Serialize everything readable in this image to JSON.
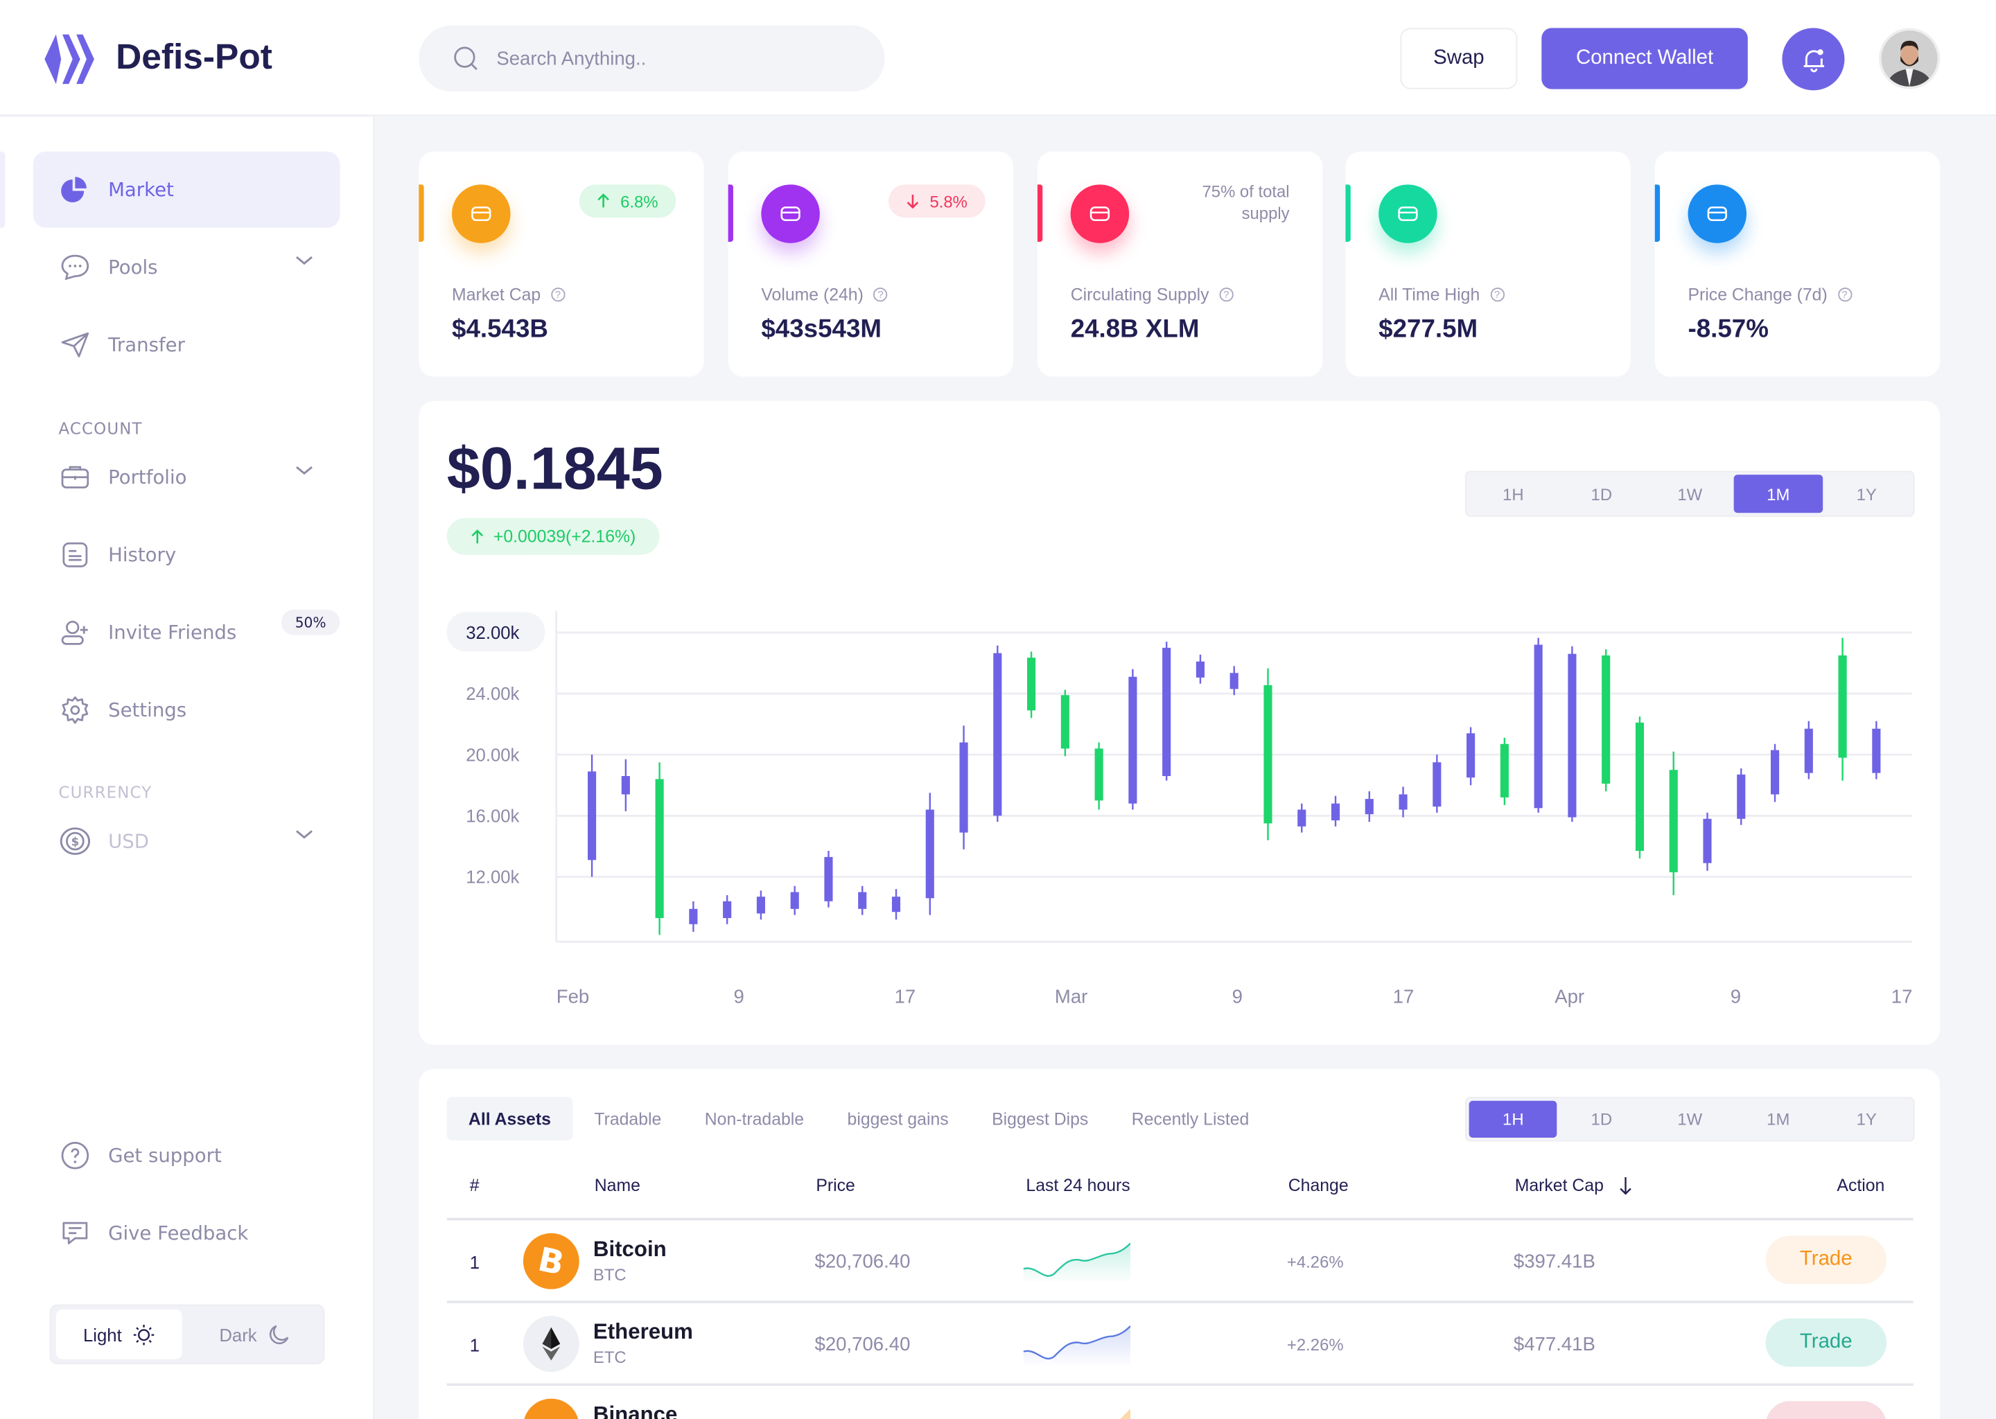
{
  "app": {
    "name": "Defis-Pot",
    "accent": "#6F63E5"
  },
  "header": {
    "search_placeholder": "Search Anything..",
    "swap_label": "Swap",
    "connect_label": "Connect Wallet",
    "bell_icon": "bell-icon",
    "avatar": "user-avatar"
  },
  "sidebar": {
    "items": [
      {
        "label": "Market",
        "icon": "pie-chart-icon",
        "active": true
      },
      {
        "label": "Pools",
        "icon": "chat-bubble-icon",
        "expandable": true
      },
      {
        "label": "Transfer",
        "icon": "send-icon"
      }
    ],
    "account_heading": "ACCOUNT",
    "account_items": [
      {
        "label": "Portfolio",
        "icon": "briefcase-icon",
        "expandable": true
      },
      {
        "label": "History",
        "icon": "document-icon"
      },
      {
        "label": "Invite Friends",
        "icon": "user-plus-icon",
        "badge": "50%"
      },
      {
        "label": "Settings",
        "icon": "gear-icon"
      }
    ],
    "currency_heading": "CURRENCY",
    "currency": {
      "label": "USD",
      "icon": "dollar-coin-icon"
    },
    "bottom_items": [
      {
        "label": "Get support",
        "icon": "help-circle-icon"
      },
      {
        "label": "Give Feedback",
        "icon": "message-icon"
      }
    ],
    "theme": {
      "light": "Light",
      "dark": "Dark",
      "selected": "Light"
    }
  },
  "stats": [
    {
      "label": "Market Cap",
      "value": "$4.543B",
      "change": "6.8%",
      "direction": "up",
      "color": "#F7A21B"
    },
    {
      "label": "Volume (24h)",
      "value": "$43s543M",
      "change": "5.8%",
      "direction": "down",
      "color": "#A033F0"
    },
    {
      "label": "Circulating Supply",
      "value": "24.8B XLM",
      "note": "75% of total supply",
      "color": "#FF2E5E"
    },
    {
      "label": "All Time High",
      "value": "$277.5M",
      "color": "#16D9A0"
    },
    {
      "label": "Price Change (7d)",
      "value": "-8.57%",
      "color": "#1A8CF0"
    }
  ],
  "price": {
    "value": "$0.1845",
    "change": "+0.00039(+2.16%)"
  },
  "timeframes": [
    "1H",
    "1D",
    "1W",
    "1M",
    "1Y"
  ],
  "chart_timeframe": "1M",
  "chart_data": {
    "type": "candlestick",
    "x_ticks": [
      "Feb",
      "9",
      "17",
      "Mar",
      "9",
      "17",
      "Apr",
      "9",
      "17"
    ],
    "y_ticks": [
      12,
      16,
      20,
      24,
      32
    ],
    "y_tick_labels": [
      "12.00k",
      "16.00k",
      "20.00k",
      "24.00k",
      "32.00k"
    ],
    "y_highlight": "32.00k",
    "unit": "k",
    "grid": true,
    "colors": {
      "up": "#1ED56B",
      "down": "#6F63E5"
    },
    "candles": [
      {
        "o": 18.9,
        "h": 20.0,
        "l": 12.0,
        "c": 13.1
      },
      {
        "o": 18.6,
        "h": 19.7,
        "l": 16.3,
        "c": 17.4
      },
      {
        "o": 9.3,
        "h": 19.5,
        "l": 8.2,
        "c": 18.4
      },
      {
        "o": 9.9,
        "h": 10.4,
        "l": 8.4,
        "c": 8.9
      },
      {
        "o": 10.4,
        "h": 10.8,
        "l": 8.9,
        "c": 9.3
      },
      {
        "o": 10.7,
        "h": 11.1,
        "l": 9.2,
        "c": 9.6
      },
      {
        "o": 11.0,
        "h": 11.4,
        "l": 9.5,
        "c": 9.9
      },
      {
        "o": 13.3,
        "h": 13.7,
        "l": 10.0,
        "c": 10.4
      },
      {
        "o": 11.0,
        "h": 11.4,
        "l": 9.5,
        "c": 9.9
      },
      {
        "o": 10.7,
        "h": 11.2,
        "l": 9.2,
        "c": 9.7
      },
      {
        "o": 16.4,
        "h": 17.5,
        "l": 9.5,
        "c": 10.6
      },
      {
        "o": 20.8,
        "h": 21.9,
        "l": 13.8,
        "c": 14.9
      },
      {
        "o": 29.3,
        "h": 30.3,
        "l": 15.6,
        "c": 16.0
      },
      {
        "o": 22.9,
        "h": 29.5,
        "l": 22.4,
        "c": 28.7
      },
      {
        "o": 20.4,
        "h": 24.5,
        "l": 19.9,
        "c": 23.9
      },
      {
        "o": 17.0,
        "h": 20.8,
        "l": 16.4,
        "c": 20.4
      },
      {
        "o": 26.2,
        "h": 27.2,
        "l": 16.4,
        "c": 16.8
      },
      {
        "o": 30.0,
        "h": 30.8,
        "l": 18.3,
        "c": 18.6
      },
      {
        "o": 28.2,
        "h": 29.1,
        "l": 25.3,
        "c": 26.1
      },
      {
        "o": 26.7,
        "h": 27.6,
        "l": 23.9,
        "c": 24.6
      },
      {
        "o": 15.5,
        "h": 27.3,
        "l": 14.4,
        "c": 25.1
      },
      {
        "o": 16.4,
        "h": 16.8,
        "l": 14.9,
        "c": 15.3
      },
      {
        "o": 16.8,
        "h": 17.3,
        "l": 15.3,
        "c": 15.7
      },
      {
        "o": 17.1,
        "h": 17.6,
        "l": 15.6,
        "c": 16.1
      },
      {
        "o": 17.4,
        "h": 17.9,
        "l": 15.9,
        "c": 16.4
      },
      {
        "o": 19.5,
        "h": 20.0,
        "l": 16.2,
        "c": 16.6
      },
      {
        "o": 21.4,
        "h": 21.8,
        "l": 18.0,
        "c": 18.5
      },
      {
        "o": 17.2,
        "h": 21.1,
        "l": 16.7,
        "c": 20.7
      },
      {
        "o": 30.4,
        "h": 31.3,
        "l": 16.2,
        "c": 16.5
      },
      {
        "o": 29.2,
        "h": 30.2,
        "l": 15.6,
        "c": 15.9
      },
      {
        "o": 18.1,
        "h": 29.8,
        "l": 17.6,
        "c": 29.0
      },
      {
        "o": 13.7,
        "h": 22.5,
        "l": 13.2,
        "c": 22.1
      },
      {
        "o": 12.3,
        "h": 20.2,
        "l": 10.8,
        "c": 19.0
      },
      {
        "o": 15.8,
        "h": 16.2,
        "l": 12.4,
        "c": 12.9
      },
      {
        "o": 18.7,
        "h": 19.1,
        "l": 15.4,
        "c": 15.8
      },
      {
        "o": 20.3,
        "h": 20.7,
        "l": 16.9,
        "c": 17.4
      },
      {
        "o": 21.7,
        "h": 22.2,
        "l": 18.4,
        "c": 18.8
      },
      {
        "o": 19.8,
        "h": 31.3,
        "l": 18.3,
        "c": 29.0
      },
      {
        "o": 21.7,
        "h": 22.2,
        "l": 18.4,
        "c": 18.8
      }
    ]
  },
  "assets": {
    "tabs": [
      "All Assets",
      "Tradable",
      "Non-tradable",
      "biggest gains",
      "Biggest Dips",
      "Recently Listed"
    ],
    "active_tab": "All Assets",
    "timeframe": "1H",
    "columns": [
      "#",
      "Name",
      "Price",
      "Last 24 hours",
      "Change",
      "Market Cap",
      "Action"
    ],
    "sort_icon": "arrow-down-icon",
    "rows": [
      {
        "rank": "1",
        "name": "Bitcoin",
        "symbol": "BTC",
        "price": "$20,706.40",
        "change": "+4.26%",
        "market_cap": "$397.41B",
        "action": "Trade",
        "icon": "bitcoin-icon",
        "color": "#F7931A",
        "spark_color": "#2BC6A0"
      },
      {
        "rank": "1",
        "name": "Ethereum",
        "symbol": "ETC",
        "price": "$20,706.40",
        "change": "+2.26%",
        "market_cap": "$477.41B",
        "action": "Trade",
        "icon": "ethereum-icon",
        "color": "#626890",
        "spark_color": "#5B7BE0"
      },
      {
        "name": "Binance",
        "icon": "binance-icon",
        "color": "#F7931A",
        "spark_color": "#F7A21B"
      }
    ]
  }
}
